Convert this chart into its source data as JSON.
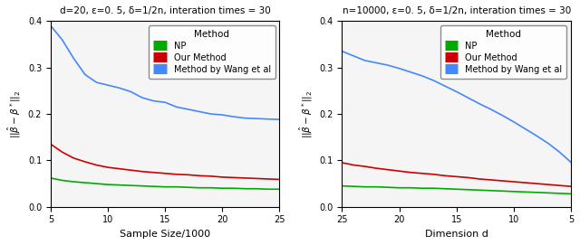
{
  "plot1": {
    "title": "d=20, ε=0. 5, δ=1/2n, interation times = 30",
    "xlabel": "Sample Size/1000",
    "ylabel": "|||βᶜ - β*|||₂",
    "xlim": [
      5,
      25
    ],
    "ylim": [
      0,
      0.4
    ],
    "yticks": [
      0.0,
      0.1,
      0.2,
      0.3,
      0.4
    ],
    "xticks": [
      5,
      10,
      15,
      20,
      25
    ],
    "x": [
      5,
      6,
      7,
      8,
      9,
      10,
      11,
      12,
      13,
      14,
      15,
      16,
      17,
      18,
      19,
      20,
      21,
      22,
      23,
      24,
      25
    ],
    "NP": [
      0.062,
      0.057,
      0.054,
      0.052,
      0.05,
      0.048,
      0.047,
      0.046,
      0.045,
      0.044,
      0.043,
      0.043,
      0.042,
      0.041,
      0.041,
      0.04,
      0.04,
      0.039,
      0.039,
      0.038,
      0.038
    ],
    "OurMethod": [
      0.135,
      0.118,
      0.105,
      0.097,
      0.09,
      0.085,
      0.082,
      0.079,
      0.076,
      0.074,
      0.072,
      0.07,
      0.069,
      0.067,
      0.066,
      0.064,
      0.063,
      0.062,
      0.061,
      0.06,
      0.059
    ],
    "Wang": [
      0.39,
      0.36,
      0.32,
      0.285,
      0.268,
      0.262,
      0.256,
      0.248,
      0.235,
      0.228,
      0.225,
      0.215,
      0.21,
      0.205,
      0.2,
      0.198,
      0.194,
      0.191,
      0.19,
      0.189,
      0.188
    ]
  },
  "plot2": {
    "title": "n=10000, ε=0. 5, δ=1/2n, interation times = 30",
    "xlabel": "Dimension d",
    "ylabel": "|||βᶜ - β*|||₂",
    "xlim": [
      25,
      5
    ],
    "ylim": [
      0,
      0.4
    ],
    "yticks": [
      0.0,
      0.1,
      0.2,
      0.3,
      0.4
    ],
    "xticks": [
      25,
      20,
      15,
      10,
      5
    ],
    "x": [
      25,
      24,
      23,
      22,
      21,
      20,
      19,
      18,
      17,
      16,
      15,
      14,
      13,
      12,
      11,
      10,
      9,
      8,
      7,
      6,
      5
    ],
    "NP": [
      0.045,
      0.044,
      0.043,
      0.043,
      0.042,
      0.041,
      0.041,
      0.04,
      0.04,
      0.039,
      0.038,
      0.037,
      0.036,
      0.035,
      0.034,
      0.033,
      0.032,
      0.031,
      0.03,
      0.029,
      0.028
    ],
    "OurMethod": [
      0.095,
      0.09,
      0.087,
      0.083,
      0.08,
      0.077,
      0.074,
      0.072,
      0.07,
      0.067,
      0.065,
      0.063,
      0.06,
      0.058,
      0.056,
      0.054,
      0.052,
      0.05,
      0.048,
      0.046,
      0.044
    ],
    "Wang": [
      0.335,
      0.325,
      0.315,
      0.31,
      0.305,
      0.298,
      0.29,
      0.282,
      0.272,
      0.26,
      0.248,
      0.235,
      0.222,
      0.21,
      0.197,
      0.183,
      0.168,
      0.153,
      0.137,
      0.118,
      0.096
    ]
  },
  "colors": {
    "NP": "#00AA00",
    "OurMethod": "#CC0000",
    "Wang": "#4488FF"
  },
  "legend_labels": [
    "NP",
    "Our Method",
    "Method by Wang et al"
  ],
  "bg_color": "#F5F5F5"
}
